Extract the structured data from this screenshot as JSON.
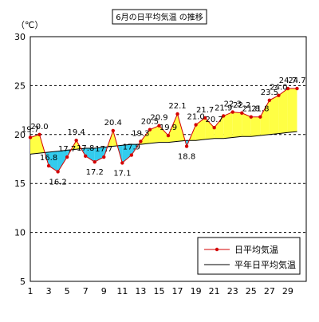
{
  "chart_data": {
    "type": "line",
    "title": "6月の日平均気温 の推移",
    "ylabel": "（℃）",
    "xlabel": "",
    "ylim": [
      5,
      30
    ],
    "yticks": [
      5,
      10,
      15,
      20,
      25,
      30
    ],
    "xticks": [
      "1",
      "3",
      "5",
      "7",
      "9",
      "11",
      "13",
      "15",
      "17",
      "19",
      "21",
      "23",
      "25",
      "27",
      "29"
    ],
    "x": [
      1,
      2,
      3,
      4,
      5,
      6,
      7,
      8,
      9,
      10,
      11,
      12,
      13,
      14,
      15,
      16,
      17,
      18,
      19,
      20,
      21,
      22,
      23,
      24,
      25,
      26,
      27,
      28,
      29,
      30
    ],
    "grid": "horizontal dashed",
    "legend_position": "bottom-right",
    "colors": {
      "daily": "#d40000",
      "normal": "#000000",
      "above_fill": "#ffff44",
      "below_fill": "#33ccee"
    },
    "series": [
      {
        "name": "日平均気温",
        "values": [
          19.7,
          20.0,
          16.8,
          16.2,
          17.7,
          19.4,
          17.8,
          17.2,
          17.7,
          20.4,
          17.1,
          17.9,
          19.3,
          20.5,
          20.9,
          19.9,
          22.1,
          18.8,
          21.0,
          21.7,
          20.7,
          21.9,
          22.3,
          22.2,
          21.8,
          21.8,
          23.5,
          24.0,
          24.7,
          24.7
        ],
        "labels": [
          "19.7",
          "20.0",
          "16.8",
          "16.2",
          "17.7",
          "19.4",
          "17.8",
          "17.2",
          "17.7",
          "20.4",
          "17.1",
          "17.9",
          "19.3",
          "20.5",
          "20.9",
          "19.9",
          "22.1",
          "18.8",
          "21.0",
          "21.7",
          "20.7",
          "21.9",
          "22.3",
          "22.2",
          "21.8",
          "21.8",
          "23.5",
          "24.0",
          "24.7",
          "24.7"
        ]
      },
      {
        "name": "平年日平均気温",
        "values": [
          18.0,
          18.1,
          18.2,
          18.3,
          18.4,
          18.5,
          18.6,
          18.6,
          18.7,
          18.8,
          18.9,
          19.0,
          19.0,
          19.1,
          19.2,
          19.2,
          19.3,
          19.4,
          19.4,
          19.5,
          19.6,
          19.6,
          19.7,
          19.8,
          19.8,
          19.9,
          20.0,
          20.1,
          20.2,
          20.3
        ]
      }
    ]
  }
}
